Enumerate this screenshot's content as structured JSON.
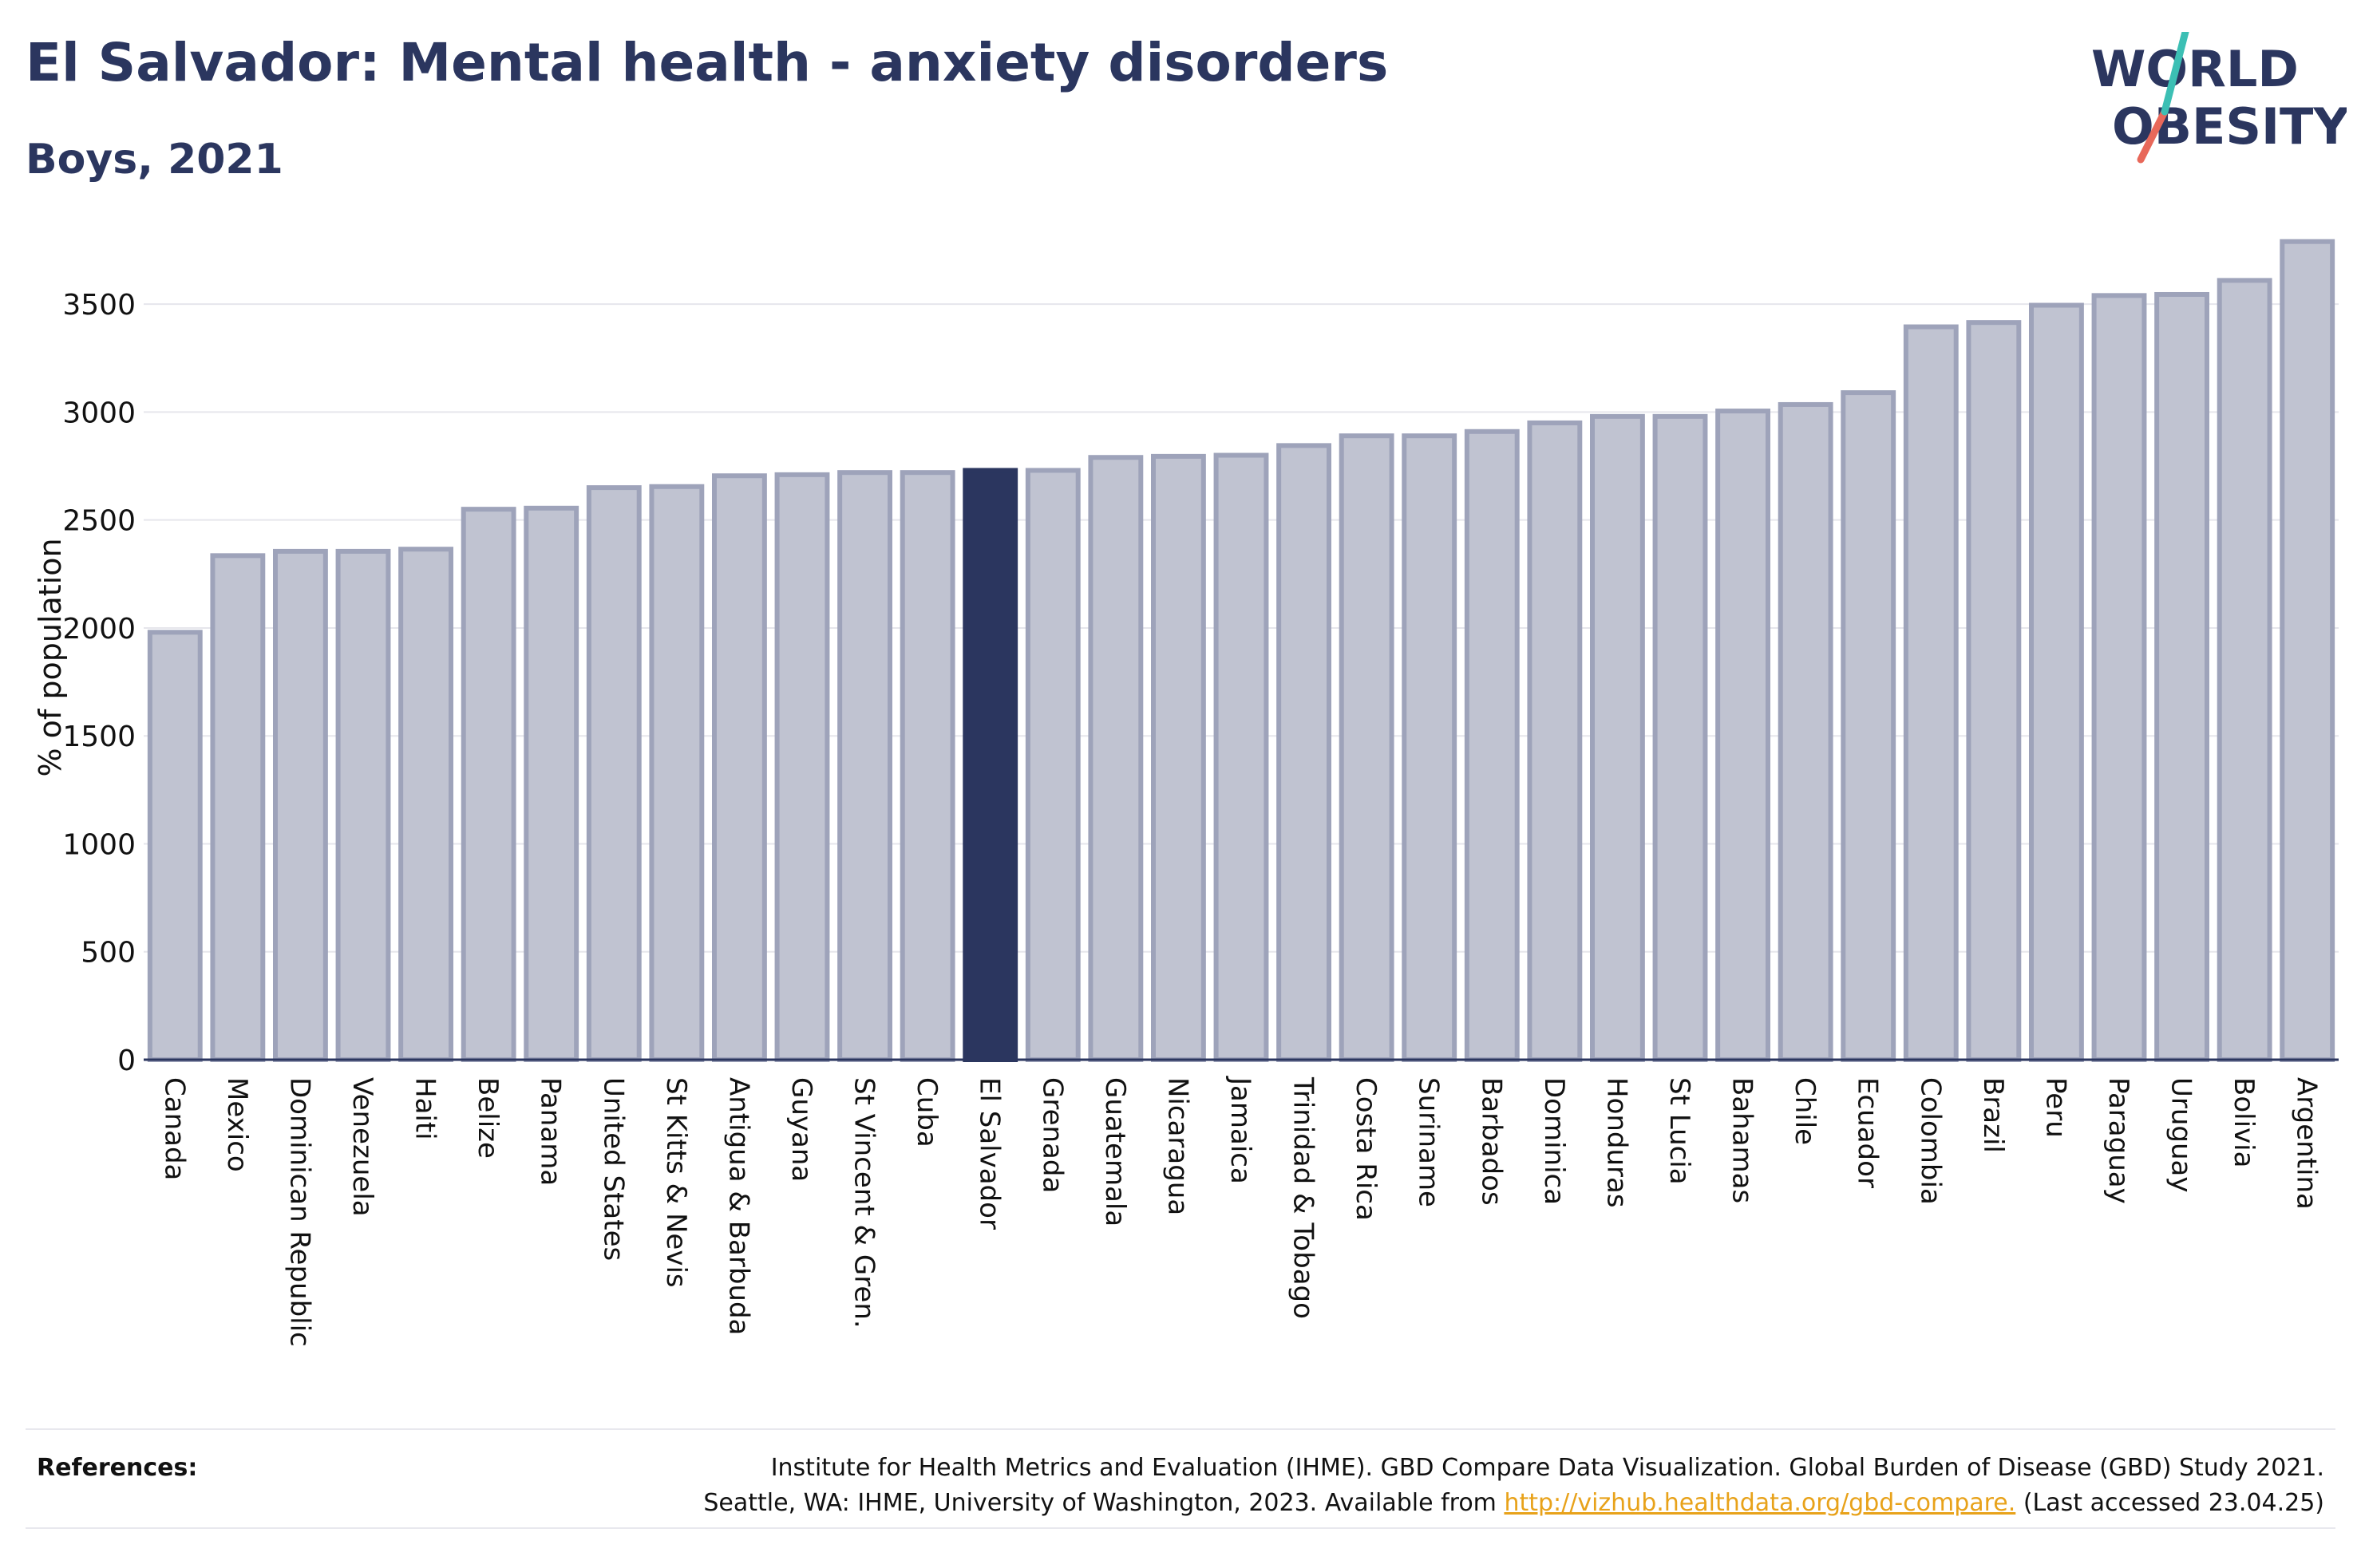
{
  "header": {
    "title": "El Salvador: Mental health - anxiety disorders",
    "subtitle": "Boys, 2021"
  },
  "logo": {
    "line1": "WORLD",
    "line2": "OBESITY"
  },
  "colors": {
    "highlight": "#2b365f",
    "bar_fill": "#c0c3d1",
    "bar_stroke": "#9ea3ba",
    "accent_teal": "#3cbfb4",
    "accent_coral": "#e8685a"
  },
  "chart_data": {
    "type": "bar",
    "title": "El Salvador: Mental health - anxiety disorders",
    "subtitle": "Boys, 2021",
    "xlabel": "",
    "ylabel": "% of population",
    "ylim": [
      0,
      3800
    ],
    "yticks": [
      0,
      500,
      1000,
      1500,
      2000,
      2500,
      3000,
      3500
    ],
    "grid": true,
    "highlight": "El Salvador",
    "categories": [
      "Canada",
      "Mexico",
      "Dominican Republic",
      "Venezuela",
      "Haiti",
      "Belize",
      "Panama",
      "United States",
      "St Kitts & Nevis",
      "Antigua & Barbuda",
      "Guyana",
      "St Vincent & Gren.",
      "Cuba",
      "El Salvador",
      "Grenada",
      "Guatemala",
      "Nicaragua",
      "Jamaica",
      "Trinidad & Tobago",
      "Costa Rica",
      "Suriname",
      "Barbados",
      "Dominica",
      "Honduras",
      "St Lucia",
      "Bahamas",
      "Chile",
      "Ecuador",
      "Colombia",
      "Brazil",
      "Peru",
      "Paraguay",
      "Uruguay",
      "Bolivia",
      "Argentina"
    ],
    "values": [
      1980,
      2335,
      2355,
      2355,
      2365,
      2550,
      2555,
      2650,
      2655,
      2705,
      2710,
      2720,
      2720,
      2730,
      2730,
      2790,
      2795,
      2800,
      2845,
      2890,
      2890,
      2910,
      2950,
      2980,
      2980,
      3005,
      3035,
      3090,
      3395,
      3415,
      3495,
      3540,
      3545,
      3610,
      3790
    ]
  },
  "references": {
    "label": "References:",
    "line1": "Institute for Health Metrics and Evaluation (IHME). GBD Compare Data Visualization. Global Burden of Disease (GBD) Study 2021.",
    "line2_prefix": "Seattle, WA: IHME, University of Washington, 2023. Available from ",
    "link": "http://vizhub.healthdata.org/gbd-compare.",
    "line2_suffix": " (Last accessed 23.04.25)"
  }
}
